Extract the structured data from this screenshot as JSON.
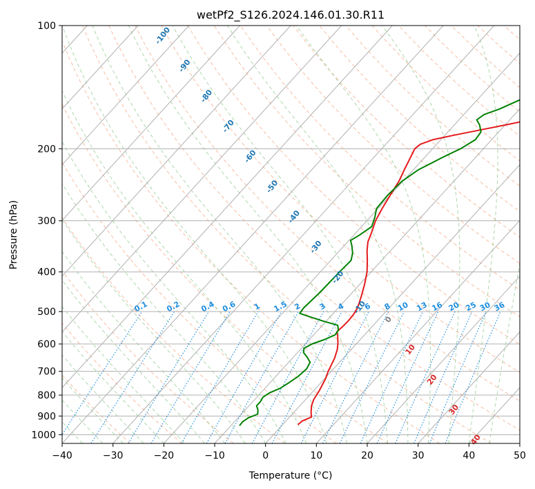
{
  "chart_data": {
    "type": "line",
    "title": "wetPf2_S126.2024.146.01.30.R11",
    "xlabel": "Temperature (°C)",
    "ylabel": "Pressure (hPa)",
    "xlim": [
      -40,
      50
    ],
    "ylim": [
      1050,
      100
    ],
    "y_scale": "log",
    "x_ticks": [
      -40,
      -30,
      -20,
      -10,
      0,
      10,
      20,
      30,
      40,
      50
    ],
    "y_ticks": [
      1000,
      900,
      800,
      700,
      600,
      500,
      400,
      300,
      200,
      100
    ],
    "grid": true,
    "series": [
      {
        "color": "#e41a1c",
        "points": [
          {
            "p": 945,
            "t": 3.0
          },
          {
            "p": 925,
            "t": 3.2
          },
          {
            "p": 905,
            "t": 4.3
          },
          {
            "p": 885,
            "t": 3.5
          },
          {
            "p": 850,
            "t": 2.3
          },
          {
            "p": 820,
            "t": 1.6
          },
          {
            "p": 780,
            "t": 1.1
          },
          {
            "p": 730,
            "t": 0.2
          },
          {
            "p": 700,
            "t": -0.6
          },
          {
            "p": 650,
            "t": -1.7
          },
          {
            "p": 620,
            "t": -2.7
          },
          {
            "p": 600,
            "t": -3.6
          },
          {
            "p": 575,
            "t": -5.0
          },
          {
            "p": 560,
            "t": -6.0
          },
          {
            "p": 545,
            "t": -5.8
          },
          {
            "p": 530,
            "t": -5.7
          },
          {
            "p": 510,
            "t": -5.8
          },
          {
            "p": 490,
            "t": -6.2
          },
          {
            "p": 460,
            "t": -7.5
          },
          {
            "p": 430,
            "t": -9.0
          },
          {
            "p": 400,
            "t": -10.8
          },
          {
            "p": 375,
            "t": -12.8
          },
          {
            "p": 355,
            "t": -14.6
          },
          {
            "p": 338,
            "t": -16.0
          },
          {
            "p": 320,
            "t": -17.0
          },
          {
            "p": 300,
            "t": -18.3
          },
          {
            "p": 280,
            "t": -19.2
          },
          {
            "p": 260,
            "t": -20.0
          },
          {
            "p": 240,
            "t": -20.8
          },
          {
            "p": 225,
            "t": -21.8
          },
          {
            "p": 210,
            "t": -22.8
          },
          {
            "p": 200,
            "t": -23.5
          },
          {
            "p": 195,
            "t": -23.2
          },
          {
            "p": 190,
            "t": -21.5
          },
          {
            "p": 185,
            "t": -18.0
          },
          {
            "p": 180,
            "t": -14.0
          },
          {
            "p": 175,
            "t": -10.0
          },
          {
            "p": 170,
            "t": -6.0
          },
          {
            "p": 165,
            "t": -3.0
          },
          {
            "p": 160,
            "t": -0.5
          },
          {
            "p": 155,
            "t": 1.0
          },
          {
            "p": 150,
            "t": 1.5
          },
          {
            "p": 140,
            "t": 2.0
          },
          {
            "p": 130,
            "t": 1.0
          },
          {
            "p": 122,
            "t": 0.5
          },
          {
            "p": 116,
            "t": 1.2
          },
          {
            "p": 110,
            "t": 2.5
          },
          {
            "p": 105,
            "t": 4.0
          },
          {
            "p": 100,
            "t": 5.5
          }
        ]
      },
      {
        "color": "#008000",
        "points": [
          {
            "p": 950,
            "t": -8.3
          },
          {
            "p": 930,
            "t": -8.4
          },
          {
            "p": 910,
            "t": -8.0
          },
          {
            "p": 890,
            "t": -6.8
          },
          {
            "p": 870,
            "t": -7.5
          },
          {
            "p": 850,
            "t": -8.5
          },
          {
            "p": 830,
            "t": -8.5
          },
          {
            "p": 810,
            "t": -8.8
          },
          {
            "p": 790,
            "t": -8.3
          },
          {
            "p": 770,
            "t": -7.0
          },
          {
            "p": 750,
            "t": -6.4
          },
          {
            "p": 720,
            "t": -5.6
          },
          {
            "p": 690,
            "t": -5.3
          },
          {
            "p": 665,
            "t": -5.8
          },
          {
            "p": 645,
            "t": -7.4
          },
          {
            "p": 630,
            "t": -8.8
          },
          {
            "p": 615,
            "t": -9.5
          },
          {
            "p": 600,
            "t": -8.7
          },
          {
            "p": 585,
            "t": -7.0
          },
          {
            "p": 570,
            "t": -5.8
          },
          {
            "p": 555,
            "t": -6.0
          },
          {
            "p": 540,
            "t": -7.0
          },
          {
            "p": 528,
            "t": -10.5
          },
          {
            "p": 515,
            "t": -14.0
          },
          {
            "p": 505,
            "t": -16.6
          },
          {
            "p": 490,
            "t": -16.8
          },
          {
            "p": 450,
            "t": -16.4
          },
          {
            "p": 400,
            "t": -16.2
          },
          {
            "p": 375,
            "t": -16.0
          },
          {
            "p": 360,
            "t": -17.0
          },
          {
            "p": 345,
            "t": -18.5
          },
          {
            "p": 335,
            "t": -19.7
          },
          {
            "p": 325,
            "t": -18.9
          },
          {
            "p": 310,
            "t": -18.0
          },
          {
            "p": 295,
            "t": -19.0
          },
          {
            "p": 280,
            "t": -20.3
          },
          {
            "p": 260,
            "t": -20.5
          },
          {
            "p": 240,
            "t": -20.2
          },
          {
            "p": 225,
            "t": -19.0
          },
          {
            "p": 210,
            "t": -16.5
          },
          {
            "p": 200,
            "t": -14.5
          },
          {
            "p": 190,
            "t": -13.2
          },
          {
            "p": 182,
            "t": -13.5
          },
          {
            "p": 175,
            "t": -15.0
          },
          {
            "p": 170,
            "t": -16.5
          },
          {
            "p": 165,
            "t": -16.0
          },
          {
            "p": 160,
            "t": -14.0
          },
          {
            "p": 150,
            "t": -11.0
          },
          {
            "p": 140,
            "t": -8.5
          },
          {
            "p": 130,
            "t": -6.5
          },
          {
            "p": 120,
            "t": -4.5
          },
          {
            "p": 110,
            "t": -2.0
          },
          {
            "p": 100,
            "t": 2.5
          }
        ]
      }
    ],
    "isotherm_labels": [
      "-100",
      "-90",
      "-80",
      "-70",
      "-60",
      "-50",
      "-40",
      "-30",
      "-20",
      "-10",
      "0",
      "10",
      "20",
      "30",
      "40"
    ],
    "mixing_ratio_labels": [
      "0.1",
      "0.2",
      "0.4",
      "0.6",
      "1",
      "1.5",
      "2",
      "3",
      "4",
      "6",
      "8",
      "10",
      "13",
      "16",
      "20",
      "25",
      "30",
      "36"
    ],
    "mixing_ratio_values": [
      0.1,
      0.2,
      0.4,
      0.6,
      1,
      1.5,
      2,
      3,
      4,
      6,
      8,
      10,
      13,
      16,
      20,
      25,
      30,
      36
    ],
    "colors": {
      "temperature": "#e41a1c",
      "dewpoint": "#008000",
      "isotherm_label_cold": "#1f77b4",
      "isotherm_label_warm": "#d62728",
      "isotherm_label_zero": "#7f7f7f",
      "mixing_ratio": "#1f8ee0",
      "dry_adiabat": "#f4a582",
      "moist_adiabat": "#8fc98f",
      "grid": "#b0b0b0"
    }
  }
}
